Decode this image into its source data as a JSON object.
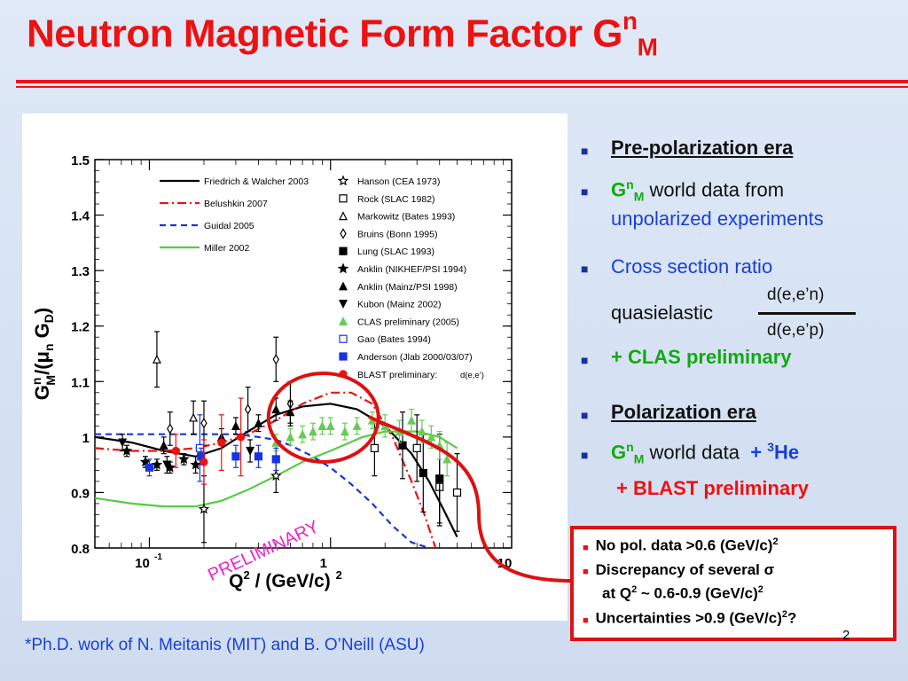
{
  "slide": {
    "title_main": "Neutron Magnetic Form Factor G",
    "title_sup": "n",
    "title_sub": "M",
    "footnote": "*Ph.D. work of N. Meitanis (MIT) and B. O’Neill (ASU)",
    "page_number": "2"
  },
  "bullets": {
    "b1": "Pre-polarization era",
    "b2_g": "G",
    "b2_sup": "n",
    "b2_sub": "M",
    "b2_rest": " world data from",
    "b2_line2": "unpolarized experiments",
    "b3_line1": "Cross section ratio",
    "b3_num": "d(e,e’n)",
    "b3_quasi": "quasielastic",
    "b3_den": "d(e,e’p)",
    "b4": "+ CLAS preliminary",
    "b5": "Polarization era",
    "b6_g": "G",
    "b6_sup": "n",
    "b6_sub": "M",
    "b6_rest": " world data",
    "b6_plus": "+ ",
    "b6_sup3": "3",
    "b6_he": "He",
    "b7": "+ BLAST preliminary"
  },
  "callout": {
    "l1a": "No pol. data >0.6 (GeV/c)",
    "l1b": "2",
    "l2a": "Discrepancy of several ",
    "l2sigma": "σ",
    "l3a": "at Q",
    "l3b": "2",
    "l3c": " ~ 0.6-0.9 (GeV/c)",
    "l3d": "2",
    "l4a": "Uncertainties >0.9 (GeV/c)",
    "l4b": "2",
    "l4c": "?"
  },
  "colors": {
    "title": "#ee1111",
    "blue_text": "#1a3fd6",
    "green_text": "#11aa11",
    "red_text": "#ee1111",
    "callout_border": "#dd1111",
    "preliminary": "#ee22cc"
  },
  "chart_data": {
    "type": "scatter",
    "xlabel": "Q^2 / (GeV/c)^2",
    "ylabel": "G^n_M/(μ_n G_D)",
    "x_scale": "log",
    "xlim": [
      0.05,
      10
    ],
    "ylim": [
      0.8,
      1.5
    ],
    "x_ticks": [
      {
        "value": 0.1,
        "label": "10",
        "exp": "-1"
      },
      {
        "value": 1,
        "label": "1",
        "exp": ""
      },
      {
        "value": 10,
        "label": "10",
        "exp": ""
      }
    ],
    "y_ticks": [
      {
        "value": 0.8,
        "label": "0.8"
      },
      {
        "value": 0.9,
        "label": "0.9"
      },
      {
        "value": 1.0,
        "label": "1"
      },
      {
        "value": 1.1,
        "label": "1.1"
      },
      {
        "value": 1.2,
        "label": "1.2"
      },
      {
        "value": 1.3,
        "label": "1.3"
      },
      {
        "value": 1.4,
        "label": "1.4"
      },
      {
        "value": 1.5,
        "label": "1.5"
      }
    ],
    "watermark": "PRELIMINARY",
    "curves": [
      {
        "name": "Friedrich & Walcher 2003",
        "color": "#000000",
        "dash": "",
        "x": [
          0.05,
          0.08,
          0.12,
          0.18,
          0.25,
          0.35,
          0.5,
          0.7,
          1.0,
          1.4,
          2.0,
          2.8,
          3.5,
          4.2,
          5.0
        ],
        "y": [
          1.0,
          0.99,
          0.975,
          0.965,
          0.98,
          1.01,
          1.04,
          1.055,
          1.06,
          1.05,
          1.02,
          0.97,
          0.92,
          0.87,
          0.82
        ]
      },
      {
        "name": "Belushkin 2007",
        "color": "#ee1111",
        "dash": "10,4,2,4",
        "x": [
          0.05,
          0.08,
          0.12,
          0.18,
          0.25,
          0.35,
          0.5,
          0.7,
          1.0,
          1.3,
          1.7,
          2.2,
          2.8,
          3.3,
          3.8
        ],
        "y": [
          0.98,
          0.975,
          0.975,
          0.98,
          0.99,
          1.005,
          1.03,
          1.06,
          1.08,
          1.08,
          1.06,
          1.0,
          0.92,
          0.86,
          0.8
        ]
      },
      {
        "name": "Guidal 2005",
        "color": "#1a33dd",
        "dash": "7,5",
        "x": [
          0.05,
          0.1,
          0.2,
          0.3,
          0.4,
          0.5,
          0.6,
          0.8,
          1.0,
          1.3,
          1.7,
          2.2,
          2.8,
          3.5
        ],
        "y": [
          1.005,
          1.005,
          1.005,
          1.005,
          1.0,
          0.995,
          0.985,
          0.965,
          0.945,
          0.915,
          0.88,
          0.84,
          0.81,
          0.8
        ]
      },
      {
        "name": "Miller 2002",
        "color": "#55cc44",
        "dash": "",
        "x": [
          0.05,
          0.08,
          0.12,
          0.18,
          0.25,
          0.35,
          0.5,
          0.7,
          1.0,
          1.5,
          2.0,
          3.0,
          4.0,
          5.0
        ],
        "y": [
          0.89,
          0.88,
          0.875,
          0.875,
          0.885,
          0.905,
          0.93,
          0.955,
          0.975,
          1.0,
          1.01,
          1.01,
          1.0,
          0.98
        ]
      }
    ],
    "series": [
      {
        "name": "Hanson (CEA 1973)",
        "marker": "star-open",
        "color": "#000000",
        "points": [
          {
            "x": 0.2,
            "y": 0.87,
            "err": 0.06
          },
          {
            "x": 0.5,
            "y": 0.93,
            "err": 0.03
          }
        ]
      },
      {
        "name": "Rock (SLAC 1982)",
        "marker": "square-open",
        "color": "#000000",
        "points": [
          {
            "x": 1.75,
            "y": 0.98,
            "err": 0.05
          },
          {
            "x": 3.0,
            "y": 0.98,
            "err": 0.06
          },
          {
            "x": 4.0,
            "y": 0.91,
            "err": 0.07
          },
          {
            "x": 5.0,
            "y": 0.9,
            "err": 0.07
          }
        ]
      },
      {
        "name": "Markowitz (Bates 1993)",
        "marker": "triangle-open",
        "color": "#000000",
        "points": [
          {
            "x": 0.11,
            "y": 1.14,
            "err": 0.05
          },
          {
            "x": 0.175,
            "y": 1.035,
            "err": 0.03
          }
        ]
      },
      {
        "name": "Bruins (Bonn 1995)",
        "marker": "diamond-open",
        "color": "#000000",
        "points": [
          {
            "x": 0.13,
            "y": 1.015,
            "err": 0.03
          },
          {
            "x": 0.2,
            "y": 1.025,
            "err": 0.04
          },
          {
            "x": 0.35,
            "y": 1.05,
            "err": 0.04
          },
          {
            "x": 0.5,
            "y": 1.14,
            "err": 0.04
          },
          {
            "x": 0.6,
            "y": 1.06,
            "err": 0.04
          }
        ]
      },
      {
        "name": "Lung (SLAC 1993)",
        "marker": "square-filled",
        "color": "#000000",
        "points": [
          {
            "x": 2.5,
            "y": 0.985,
            "err": 0.06
          },
          {
            "x": 3.25,
            "y": 0.935,
            "err": 0.07
          },
          {
            "x": 4.0,
            "y": 0.925,
            "err": 0.08
          }
        ]
      },
      {
        "name": "Anklin (NIKHEF/PSI 1994)",
        "marker": "star-filled",
        "color": "#000000",
        "points": [
          {
            "x": 0.075,
            "y": 0.975,
            "err": 0.01
          },
          {
            "x": 0.095,
            "y": 0.955,
            "err": 0.01
          },
          {
            "x": 0.11,
            "y": 0.95,
            "err": 0.01
          },
          {
            "x": 0.13,
            "y": 0.945,
            "err": 0.01
          },
          {
            "x": 0.155,
            "y": 0.96,
            "err": 0.01
          },
          {
            "x": 0.18,
            "y": 0.95,
            "err": 0.015
          }
        ]
      },
      {
        "name": "Anklin (Mainz/PSI 1998)",
        "marker": "triangle-filled",
        "color": "#000000",
        "points": [
          {
            "x": 0.12,
            "y": 0.985,
            "err": 0.015
          },
          {
            "x": 0.25,
            "y": 1.0,
            "err": 0.015
          },
          {
            "x": 0.3,
            "y": 1.02,
            "err": 0.015
          },
          {
            "x": 0.4,
            "y": 1.025,
            "err": 0.015
          },
          {
            "x": 0.5,
            "y": 1.05,
            "err": 0.02
          },
          {
            "x": 0.6,
            "y": 1.045,
            "err": 0.02
          }
        ]
      },
      {
        "name": "Kubon (Mainz 2002)",
        "marker": "triangle-down-filled",
        "color": "#000000",
        "points": [
          {
            "x": 0.071,
            "y": 0.99,
            "err": 0.015
          },
          {
            "x": 0.125,
            "y": 0.95,
            "err": 0.015
          },
          {
            "x": 0.36,
            "y": 0.975,
            "err": 0.02
          }
        ]
      },
      {
        "name": "CLAS preliminary (2005)",
        "marker": "triangle-filled",
        "color": "#66cc55",
        "points": [
          {
            "x": 0.5,
            "y": 0.99,
            "err": 0.015
          },
          {
            "x": 0.6,
            "y": 1.0,
            "err": 0.015
          },
          {
            "x": 0.7,
            "y": 1.005,
            "err": 0.015
          },
          {
            "x": 0.8,
            "y": 1.01,
            "err": 0.015
          },
          {
            "x": 0.9,
            "y": 1.02,
            "err": 0.015
          },
          {
            "x": 1.0,
            "y": 1.02,
            "err": 0.015
          },
          {
            "x": 1.2,
            "y": 1.01,
            "err": 0.015
          },
          {
            "x": 1.4,
            "y": 1.02,
            "err": 0.015
          },
          {
            "x": 1.7,
            "y": 1.03,
            "err": 0.015
          },
          {
            "x": 2.0,
            "y": 1.02,
            "err": 0.02
          },
          {
            "x": 2.4,
            "y": 1.01,
            "err": 0.02
          },
          {
            "x": 2.8,
            "y": 1.03,
            "err": 0.02
          },
          {
            "x": 3.2,
            "y": 1.01,
            "err": 0.02
          },
          {
            "x": 3.6,
            "y": 1.0,
            "err": 0.02
          },
          {
            "x": 4.0,
            "y": 0.985,
            "err": 0.025
          },
          {
            "x": 4.4,
            "y": 0.96,
            "err": 0.03
          }
        ]
      },
      {
        "name": "Gao (Bates 1994)",
        "marker": "square-open",
        "color": "#1a33dd",
        "points": [
          {
            "x": 0.19,
            "y": 0.98,
            "err": 0.06
          }
        ]
      },
      {
        "name": "Anderson (Jlab 2000/03/07)",
        "marker": "square-filled",
        "color": "#1a33dd",
        "points": [
          {
            "x": 0.1,
            "y": 0.945,
            "err": 0.015
          },
          {
            "x": 0.193,
            "y": 0.965,
            "err": 0.015
          },
          {
            "x": 0.3,
            "y": 0.965,
            "err": 0.02
          },
          {
            "x": 0.4,
            "y": 0.965,
            "err": 0.02
          },
          {
            "x": 0.5,
            "y": 0.96,
            "err": 0.02
          }
        ]
      },
      {
        "name": "BLAST preliminary:",
        "marker": "circle-filled",
        "color": "#ee1111",
        "points": [
          {
            "x": 0.14,
            "y": 0.975,
            "err": 0.03
          },
          {
            "x": 0.2,
            "y": 0.955,
            "err": 0.04
          },
          {
            "x": 0.25,
            "y": 0.99,
            "err": 0.05
          },
          {
            "x": 0.32,
            "y": 1.0,
            "err": 0.07
          }
        ]
      }
    ],
    "legend_extra": "d(e,e’)",
    "legend_placement": "top"
  }
}
